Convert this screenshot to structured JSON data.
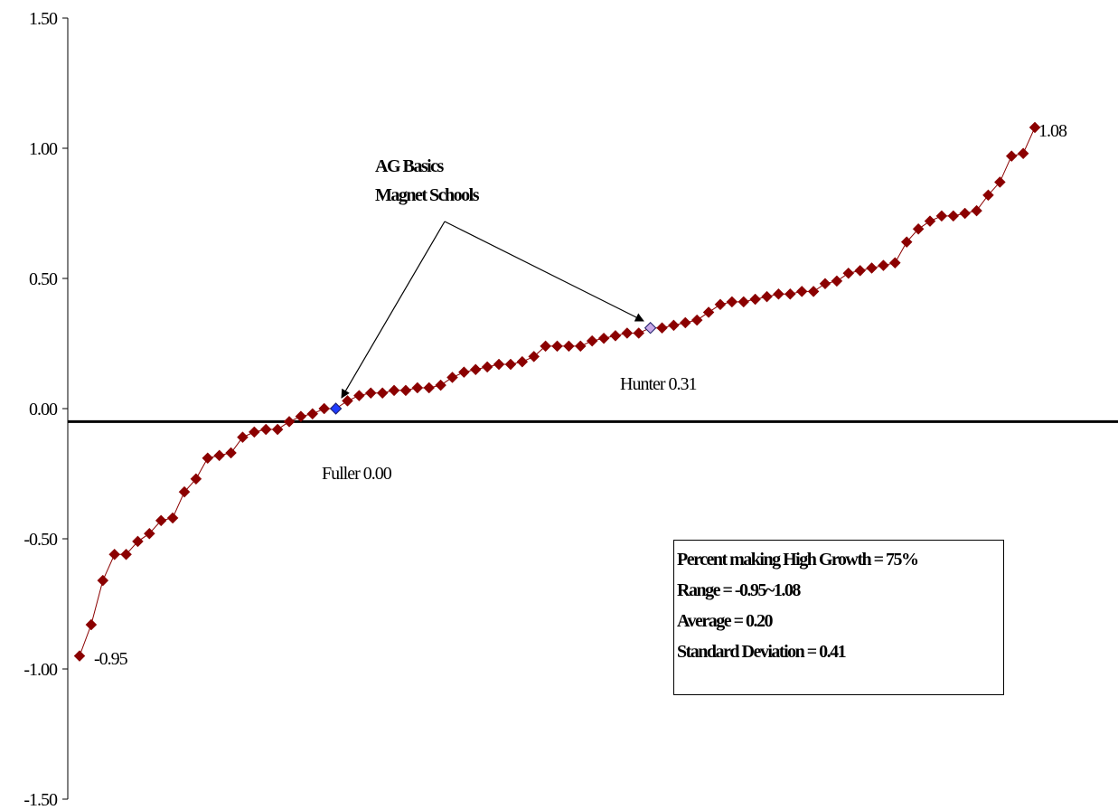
{
  "chart_data": {
    "type": "line",
    "ylim": [
      -1.5,
      1.5
    ],
    "yticks": [
      "1.50",
      "1.00",
      "0.50",
      "0.00",
      "-0.50",
      "-1.00",
      "-1.50"
    ],
    "reference_line_y": -0.05,
    "grid": false,
    "series": [
      {
        "values": [
          -0.95,
          -0.83,
          -0.66,
          -0.56,
          -0.56,
          -0.51,
          -0.48,
          -0.43,
          -0.42,
          -0.32,
          -0.27,
          -0.19,
          -0.18,
          -0.17,
          -0.11,
          -0.09,
          -0.08,
          -0.08,
          -0.05,
          -0.03,
          -0.02,
          0.0,
          0.0,
          0.03,
          0.05,
          0.06,
          0.06,
          0.07,
          0.07,
          0.08,
          0.08,
          0.09,
          0.12,
          0.14,
          0.15,
          0.16,
          0.17,
          0.17,
          0.18,
          0.2,
          0.24,
          0.24,
          0.24,
          0.24,
          0.26,
          0.27,
          0.28,
          0.29,
          0.29,
          0.31,
          0.31,
          0.32,
          0.33,
          0.34,
          0.37,
          0.4,
          0.41,
          0.41,
          0.42,
          0.43,
          0.44,
          0.44,
          0.45,
          0.45,
          0.48,
          0.49,
          0.52,
          0.53,
          0.54,
          0.55,
          0.56,
          0.64,
          0.69,
          0.72,
          0.74,
          0.74,
          0.75,
          0.76,
          0.82,
          0.87,
          0.97,
          0.98,
          1.08
        ],
        "color": "#8b0000"
      }
    ],
    "highlights": [
      {
        "index": 22,
        "color": "#1f3cff",
        "label": "Fuller 0.00"
      },
      {
        "index": 49,
        "color": "#c8a8e8",
        "label": "Hunter 0.31"
      }
    ],
    "end_labels": {
      "first": "-0.95",
      "last": "1.08"
    },
    "annotation": {
      "line1": "AG Basics",
      "line2": "Magnet Schools"
    }
  },
  "stats": {
    "line1": "Percent making High Growth = 75%",
    "line2": "Range = -0.95~1.08",
    "line3": "Average = 0.20",
    "line4": "Standard Deviation = 0.41"
  }
}
